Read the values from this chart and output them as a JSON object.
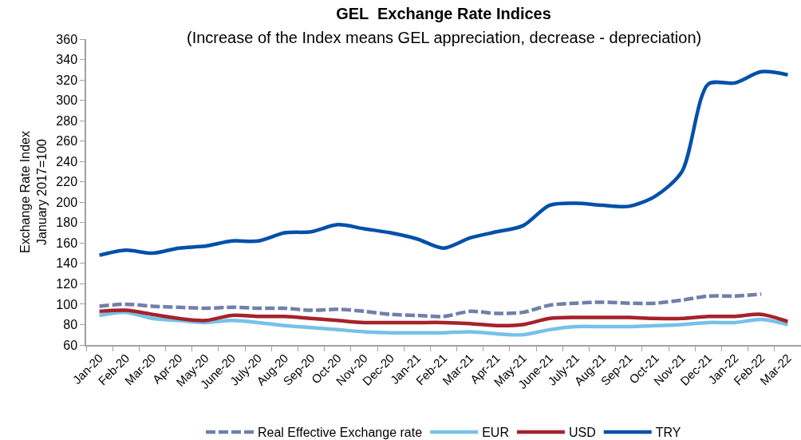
{
  "chart_data": {
    "type": "line",
    "title": "GEL  Exchange Rate Indices",
    "subtitle": "(Increase of the Index means GEL appreciation, decrease - depreciation)",
    "ylabel": "Exchange Rate Index\nJanuary 2017=100",
    "categories": [
      "Jan-20",
      "Feb-20",
      "Mar-20",
      "Apr-20",
      "May-20",
      "June-20",
      "July-20",
      "Aug-20",
      "Sep-20",
      "Oct-20",
      "Nov-20",
      "Dec-20",
      "Jan-21",
      "Feb-21",
      "Mar-21",
      "Apr-21",
      "May-21",
      "June-21",
      "July-21",
      "Aug-21",
      "Sep-21",
      "Oct-21",
      "Nov-21",
      "Dec-21",
      "Jan-22",
      "Feb-22",
      "Mar-22"
    ],
    "series": [
      {
        "name": "Real Effective Exchange rate",
        "color": "#7080aa",
        "line_style": "dashed",
        "values": [
          98,
          100,
          98,
          97,
          96,
          97,
          96,
          96,
          94,
          95,
          93,
          90,
          89,
          88,
          93,
          91,
          92,
          99,
          101,
          102,
          101,
          101,
          104,
          108,
          108,
          110,
          null
        ]
      },
      {
        "name": "EUR",
        "color": "#75c1ea",
        "values": [
          89,
          92,
          86,
          84,
          82,
          84,
          82,
          79,
          77,
          75,
          73,
          72,
          72,
          72,
          73,
          71,
          70,
          75,
          78,
          78,
          78,
          79,
          80,
          82,
          82,
          85,
          80
        ]
      },
      {
        "name": "USD",
        "color": "#a6222a",
        "values": [
          93,
          94,
          90,
          86,
          84,
          89,
          88,
          88,
          86,
          84,
          82,
          82,
          82,
          82,
          81,
          79,
          80,
          86,
          87,
          87,
          87,
          86,
          86,
          88,
          88,
          90,
          83
        ]
      },
      {
        "name": "TRY",
        "color": "#0050aa",
        "values": [
          148,
          153,
          150,
          155,
          157,
          162,
          162,
          170,
          171,
          178,
          174,
          170,
          164,
          155,
          165,
          171,
          177,
          197,
          199,
          197,
          196,
          206,
          230,
          316,
          317,
          328,
          325
        ]
      }
    ],
    "ylim": [
      60,
      360
    ],
    "yticks": [
      60,
      80,
      100,
      120,
      140,
      160,
      180,
      200,
      220,
      240,
      260,
      280,
      300,
      320,
      340,
      360
    ],
    "legend": "bottom",
    "marker": "none",
    "line_style": "solid"
  }
}
